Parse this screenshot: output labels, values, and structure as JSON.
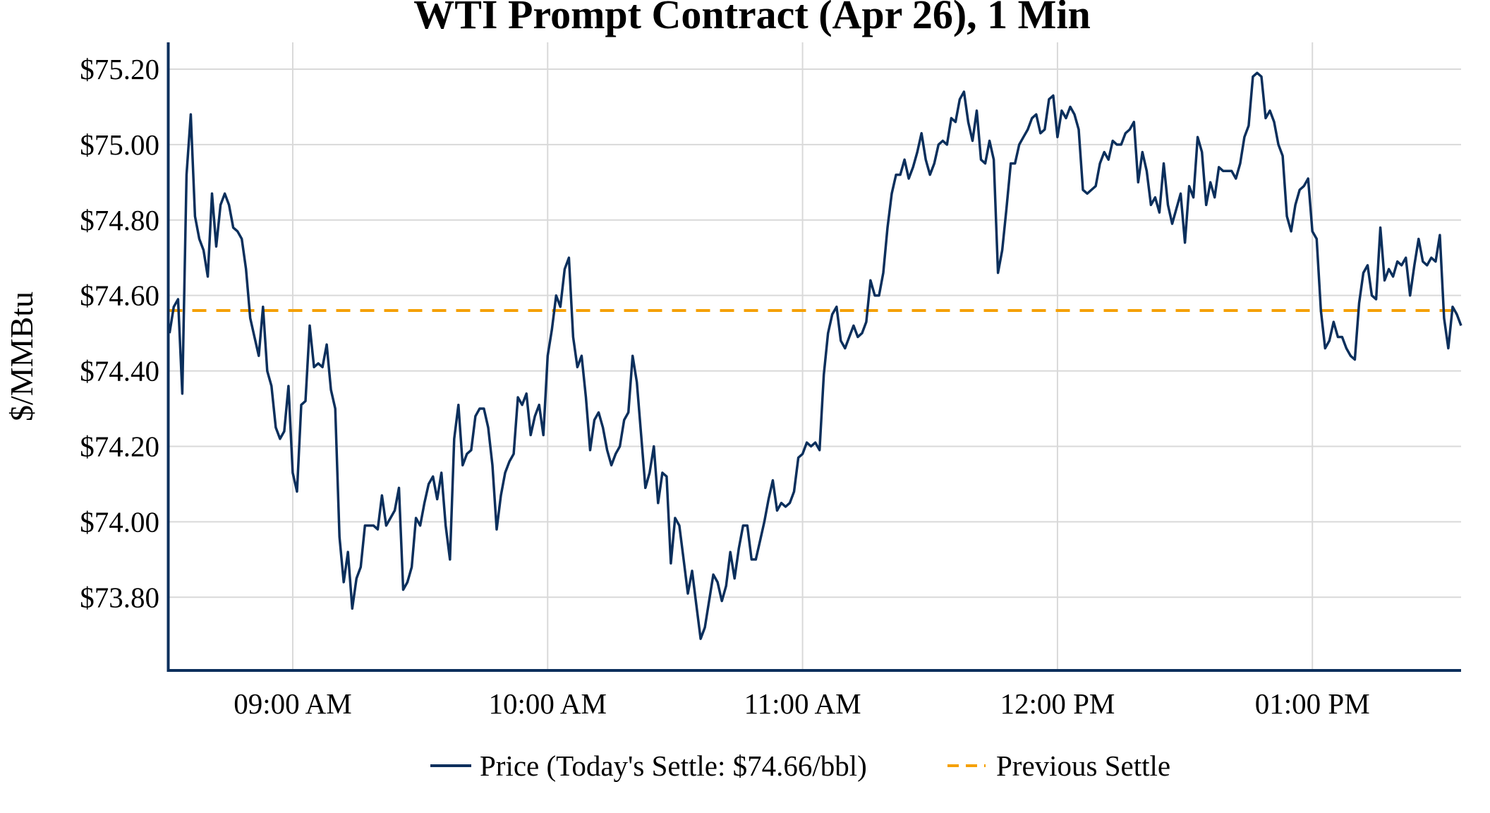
{
  "chart_data": {
    "type": "line",
    "title": "WTI Prompt Contract (Apr 26), 1 Min",
    "xlabel": "",
    "ylabel": "$/MMBtu",
    "x_start": "08:31",
    "x_step_minutes": 1,
    "xlim": [
      "08:30.7",
      "13:35"
    ],
    "ylim": [
      73.606,
      75.271
    ],
    "x_ticks": [
      {
        "time": "09:00",
        "label": "09:00 AM"
      },
      {
        "time": "10:00",
        "label": "10:00 AM"
      },
      {
        "time": "11:00",
        "label": "11:00 AM"
      },
      {
        "time": "12:00",
        "label": "12:00 PM"
      },
      {
        "time": "13:00",
        "label": "01:00 PM"
      }
    ],
    "y_ticks": [
      {
        "value": 73.8,
        "label": "$73.80"
      },
      {
        "value": 74.0,
        "label": "$74.00"
      },
      {
        "value": 74.2,
        "label": "$74.20"
      },
      {
        "value": 74.4,
        "label": "$74.40"
      },
      {
        "value": 74.6,
        "label": "$74.60"
      },
      {
        "value": 74.8,
        "label": "$74.80"
      },
      {
        "value": 75.0,
        "label": "$75.00"
      },
      {
        "value": 75.2,
        "label": "$75.20"
      }
    ],
    "grid": true,
    "legend_position": "bottom-center",
    "series": [
      {
        "name": "Price (Today's Settle: $74.66/bbl)",
        "color": "#0b2f5c",
        "style": "solid",
        "values": [
          74.5,
          74.57,
          74.59,
          74.34,
          74.92,
          75.08,
          74.81,
          74.75,
          74.72,
          74.65,
          74.87,
          74.73,
          74.84,
          74.87,
          74.84,
          74.78,
          74.77,
          74.75,
          74.67,
          74.54,
          74.49,
          74.44,
          74.57,
          74.4,
          74.36,
          74.25,
          74.22,
          74.24,
          74.36,
          74.13,
          74.08,
          74.31,
          74.32,
          74.52,
          74.41,
          74.42,
          74.41,
          74.47,
          74.35,
          74.3,
          73.96,
          73.84,
          73.92,
          73.77,
          73.85,
          73.88,
          73.99,
          73.99,
          73.99,
          73.98,
          74.07,
          73.99,
          74.01,
          74.03,
          74.09,
          73.82,
          73.84,
          73.88,
          74.01,
          73.99,
          74.05,
          74.1,
          74.12,
          74.06,
          74.13,
          73.99,
          73.9,
          74.22,
          74.31,
          74.15,
          74.18,
          74.19,
          74.28,
          74.3,
          74.3,
          74.25,
          74.15,
          73.98,
          74.07,
          74.13,
          74.16,
          74.18,
          74.33,
          74.31,
          74.34,
          74.23,
          74.28,
          74.31,
          74.23,
          74.44,
          74.51,
          74.6,
          74.57,
          74.67,
          74.7,
          74.49,
          74.41,
          74.44,
          74.33,
          74.19,
          74.27,
          74.29,
          74.25,
          74.19,
          74.15,
          74.18,
          74.2,
          74.27,
          74.29,
          74.44,
          74.37,
          74.23,
          74.09,
          74.13,
          74.2,
          74.05,
          74.13,
          74.12,
          73.89,
          74.01,
          73.99,
          73.9,
          73.81,
          73.87,
          73.78,
          73.69,
          73.72,
          73.79,
          73.86,
          73.84,
          73.79,
          73.83,
          73.92,
          73.85,
          73.93,
          73.99,
          73.99,
          73.9,
          73.9,
          73.95,
          74.0,
          74.06,
          74.11,
          74.03,
          74.05,
          74.04,
          74.05,
          74.08,
          74.17,
          74.18,
          74.21,
          74.2,
          74.21,
          74.19,
          74.39,
          74.5,
          74.55,
          74.57,
          74.48,
          74.46,
          74.49,
          74.52,
          74.49,
          74.5,
          74.53,
          74.64,
          74.6,
          74.6,
          74.66,
          74.78,
          74.87,
          74.92,
          74.92,
          74.96,
          74.91,
          74.94,
          74.98,
          75.03,
          74.96,
          74.92,
          74.95,
          75.0,
          75.01,
          75.0,
          75.07,
          75.06,
          75.12,
          75.14,
          75.06,
          75.01,
          75.09,
          74.96,
          74.95,
          75.01,
          74.96,
          74.66,
          74.72,
          74.83,
          74.95,
          74.95,
          75.0,
          75.02,
          75.04,
          75.07,
          75.08,
          75.03,
          75.04,
          75.12,
          75.13,
          75.02,
          75.09,
          75.07,
          75.1,
          75.08,
          75.04,
          74.88,
          74.87,
          74.88,
          74.89,
          74.95,
          74.98,
          74.96,
          75.01,
          75.0,
          75.0,
          75.03,
          75.04,
          75.06,
          74.9,
          74.98,
          74.93,
          74.84,
          74.86,
          74.82,
          74.95,
          74.84,
          74.79,
          74.83,
          74.87,
          74.74,
          74.89,
          74.86,
          75.02,
          74.98,
          74.84,
          74.9,
          74.86,
          74.94,
          74.93,
          74.93,
          74.93,
          74.91,
          74.95,
          75.02,
          75.05,
          75.18,
          75.19,
          75.18,
          75.07,
          75.09,
          75.06,
          75.0,
          74.97,
          74.81,
          74.77,
          74.84,
          74.88,
          74.89,
          74.91,
          74.77,
          74.75,
          74.56,
          74.46,
          74.48,
          74.53,
          74.49,
          74.49,
          74.46,
          74.44,
          74.43,
          74.58,
          74.66,
          74.68,
          74.6,
          74.59,
          74.78,
          74.64,
          74.67,
          74.65,
          74.69,
          74.68,
          74.7,
          74.6,
          74.68,
          74.75,
          74.69,
          74.68,
          74.7,
          74.69,
          74.76,
          74.54,
          74.46,
          74.57,
          74.55,
          74.52
        ]
      },
      {
        "name": "Previous Settle",
        "color": "#f5a000",
        "style": "dashed",
        "value": 74.56
      }
    ]
  }
}
